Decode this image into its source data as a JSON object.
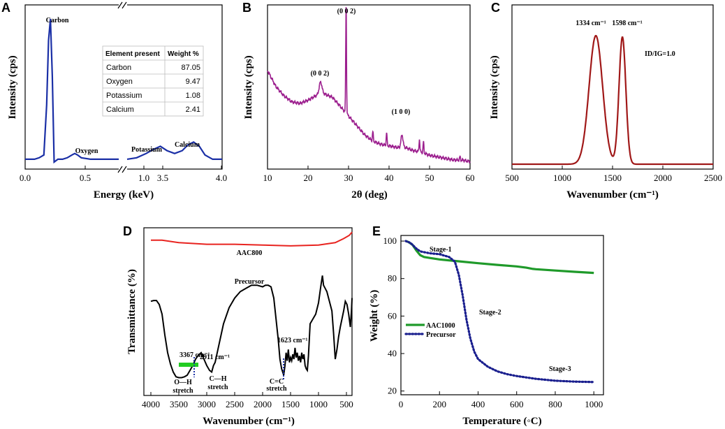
{
  "panels": {
    "A": {
      "letter": "A"
    },
    "B": {
      "letter": "B"
    },
    "C": {
      "letter": "C"
    },
    "D": {
      "letter": "D"
    },
    "E": {
      "letter": "E"
    }
  },
  "colors": {
    "A": "#1a2fa6",
    "B": "#9c1f8e",
    "C": "#a01818",
    "D_aac": "#e8231f",
    "D_prec": "#000000",
    "D_marker_green": "#22cc22",
    "D_dotted": "#1a2fa6",
    "E_aac": "#1f9a2a",
    "E_prec": "#1a1f8e"
  },
  "chart_data": [
    {
      "id": "A",
      "type": "line",
      "title": "",
      "xlabel": "Energy (keV)",
      "ylabel": "Intensity (cps)",
      "broken_axis": true,
      "xticks": [
        "0.0",
        "0.5",
        "1.0",
        "3.5",
        "4.0"
      ],
      "segments": [
        {
          "xlim": [
            0.0,
            1.0
          ],
          "x": [
            0.0,
            0.1,
            0.15,
            0.2,
            0.23,
            0.25,
            0.27,
            0.29,
            0.31,
            0.35,
            0.4,
            0.45,
            0.5,
            0.53,
            0.56,
            0.6,
            0.7,
            0.8,
            0.9,
            1.0
          ],
          "y": [
            0.02,
            0.02,
            0.03,
            0.05,
            0.4,
            0.85,
            1.0,
            0.6,
            0.0,
            0.02,
            0.02,
            0.03,
            0.05,
            0.06,
            0.05,
            0.03,
            0.02,
            0.02,
            0.02,
            0.02
          ]
        },
        {
          "xlim": [
            3.0,
            4.0
          ],
          "x": [
            3.0,
            3.1,
            3.2,
            3.28,
            3.35,
            3.42,
            3.5,
            3.58,
            3.64,
            3.7,
            3.76,
            3.82,
            3.9,
            4.0
          ],
          "y": [
            0.02,
            0.03,
            0.06,
            0.09,
            0.11,
            0.08,
            0.06,
            0.08,
            0.12,
            0.14,
            0.11,
            0.05,
            0.02,
            0.02
          ]
        }
      ],
      "annotations": [
        "Carbon",
        "Oxygen",
        "Potassium",
        "Calcium"
      ],
      "table": {
        "headers": [
          "Element present",
          "Weight %"
        ],
        "rows": [
          [
            "Carbon",
            "87.05"
          ],
          [
            "Oxygen",
            "9.47"
          ],
          [
            "Potassium",
            "1.08"
          ],
          [
            "Calcium",
            "2.41"
          ]
        ]
      }
    },
    {
      "id": "B",
      "type": "line",
      "xlabel": "2θ (deg)",
      "ylabel": "Intensity (cps)",
      "xlim": [
        10,
        60
      ],
      "xticks": [
        10,
        20,
        30,
        40,
        50,
        60
      ],
      "peak_labels": [
        {
          "text": "(0 0 2)",
          "x": 23
        },
        {
          "text": "(0 0 2)",
          "x": 29.4
        },
        {
          "text": "(1 0 0)",
          "x": 43
        }
      ],
      "baseline": {
        "x": [
          10,
          12,
          14,
          16,
          18,
          20,
          22,
          24,
          26,
          28,
          30,
          32,
          34,
          36,
          38,
          40,
          42,
          44,
          46,
          48,
          50,
          52,
          54,
          56,
          58,
          60
        ],
        "y": [
          0.61,
          0.51,
          0.45,
          0.41,
          0.4,
          0.42,
          0.45,
          0.46,
          0.44,
          0.38,
          0.32,
          0.26,
          0.2,
          0.16,
          0.14,
          0.13,
          0.12,
          0.12,
          0.1,
          0.09,
          0.07,
          0.06,
          0.05,
          0.04,
          0.04,
          0.03
        ]
      },
      "peaks": [
        {
          "x": 23.1,
          "h": 0.08,
          "w": 0.5
        },
        {
          "x": 29.4,
          "h": 0.68,
          "w": 0.14
        },
        {
          "x": 36.0,
          "h": 0.06,
          "w": 0.15
        },
        {
          "x": 39.4,
          "h": 0.08,
          "w": 0.15
        },
        {
          "x": 43.2,
          "h": 0.08,
          "w": 0.35
        },
        {
          "x": 47.5,
          "h": 0.08,
          "w": 0.15
        },
        {
          "x": 48.5,
          "h": 0.07,
          "w": 0.15
        },
        {
          "x": 57.5,
          "h": 0.02,
          "w": 0.15
        }
      ]
    },
    {
      "id": "C",
      "type": "line",
      "xlabel": "Wavenumber (cm⁻¹)",
      "ylabel": "Intensity (cps)",
      "xlim": [
        500,
        2500
      ],
      "xticks": [
        500,
        1000,
        1500,
        2000,
        2500
      ],
      "peaks": [
        {
          "x": 1334,
          "h": 0.92,
          "w": 95
        },
        {
          "x": 1598,
          "h": 0.91,
          "w": 48
        }
      ],
      "peak_labels": [
        "1334 cm⁻¹",
        "1598 cm⁻¹"
      ],
      "ratio_label": "ID/IG=1.0"
    },
    {
      "id": "D",
      "type": "line",
      "xlabel": "Wavenumber (cm⁻¹)",
      "ylabel": "Transmittance (%)",
      "xlim": [
        4000,
        400
      ],
      "xticks": [
        4000,
        3500,
        3000,
        2500,
        2000,
        1500,
        1000,
        500
      ],
      "series": [
        {
          "name": "AAC800",
          "x": [
            4000,
            3800,
            3500,
            3000,
            2500,
            2000,
            1500,
            1000,
            700,
            550,
            450,
            400
          ],
          "y": [
            0.94,
            0.94,
            0.925,
            0.915,
            0.915,
            0.91,
            0.905,
            0.91,
            0.925,
            0.95,
            0.97,
            0.99
          ]
        },
        {
          "name": "Precursor",
          "x": [
            4000,
            3950,
            3900,
            3850,
            3800,
            3750,
            3700,
            3650,
            3600,
            3550,
            3500,
            3450,
            3400,
            3350,
            3300,
            3250,
            3200,
            3150,
            3100,
            3050,
            3000,
            2950,
            2911,
            2880,
            2850,
            2800,
            2700,
            2600,
            2500,
            2400,
            2300,
            2200,
            2100,
            2000,
            1950,
            1900,
            1850,
            1800,
            1760,
            1720,
            1690,
            1660,
            1623,
            1600,
            1580,
            1560,
            1540,
            1520,
            1500,
            1480,
            1460,
            1440,
            1420,
            1400,
            1380,
            1360,
            1340,
            1320,
            1300,
            1280,
            1260,
            1240,
            1220,
            1200,
            1180,
            1150,
            1100,
            1050,
            1000,
            960,
            930,
            910,
            880,
            850,
            820,
            790,
            760,
            730,
            700,
            670,
            640,
            610,
            580,
            550,
            520,
            490,
            460,
            430,
            410,
            400
          ],
          "y": [
            0.56,
            0.565,
            0.565,
            0.54,
            0.48,
            0.35,
            0.24,
            0.17,
            0.12,
            0.09,
            0.085,
            0.085,
            0.09,
            0.1,
            0.13,
            0.16,
            0.2,
            0.225,
            0.24,
            0.2,
            0.16,
            0.13,
            0.12,
            0.16,
            0.18,
            0.26,
            0.42,
            0.52,
            0.58,
            0.62,
            0.64,
            0.66,
            0.66,
            0.65,
            0.66,
            0.66,
            0.65,
            0.58,
            0.45,
            0.32,
            0.2,
            0.14,
            0.1,
            0.16,
            0.24,
            0.19,
            0.26,
            0.18,
            0.21,
            0.19,
            0.23,
            0.2,
            0.27,
            0.21,
            0.24,
            0.19,
            0.22,
            0.18,
            0.24,
            0.2,
            0.23,
            0.16,
            0.14,
            0.13,
            0.22,
            0.42,
            0.45,
            0.48,
            0.55,
            0.65,
            0.72,
            0.66,
            0.64,
            0.62,
            0.58,
            0.54,
            0.5,
            0.36,
            0.2,
            0.26,
            0.34,
            0.4,
            0.45,
            0.5,
            0.56,
            0.54,
            0.48,
            0.4,
            0.5,
            0.58
          ]
        }
      ],
      "annotations": [
        "3367 cm⁻¹",
        "2911 cm⁻¹",
        "1623 cm⁻¹",
        "O—H stretch",
        "C—H stretch",
        "C=C stretch"
      ]
    },
    {
      "id": "E",
      "type": "line",
      "xlabel": "Temperature (◦C)",
      "ylabel": "Weight (%)",
      "xlim": [
        0,
        1050
      ],
      "ylim": [
        18,
        103
      ],
      "xticks": [
        0,
        200,
        400,
        600,
        800,
        1000
      ],
      "yticks": [
        20,
        40,
        60,
        80,
        100
      ],
      "series": [
        {
          "name": "AAC1000",
          "x": [
            25,
            40,
            60,
            80,
            100,
            120,
            150,
            200,
            300,
            400,
            500,
            600,
            650,
            680,
            700,
            800,
            900,
            1000
          ],
          "y": [
            100,
            99.5,
            98,
            95,
            92.5,
            91.5,
            91,
            90.2,
            89.2,
            88.2,
            87.3,
            86.5,
            85.8,
            85.2,
            85.0,
            84.3,
            83.6,
            83.0
          ]
        },
        {
          "name": "Precursor",
          "x": [
            25,
            50,
            80,
            100,
            150,
            200,
            250,
            280,
            300,
            320,
            340,
            360,
            380,
            400,
            450,
            500,
            550,
            600,
            700,
            800,
            900,
            1000
          ],
          "y": [
            100,
            99,
            96,
            94.5,
            93.5,
            93,
            91.5,
            89,
            82,
            71,
            58,
            48,
            41,
            37,
            33,
            30.5,
            29,
            28,
            26.5,
            25.5,
            25.0,
            24.8
          ]
        }
      ],
      "annotations": [
        "Stage-1",
        "Stage-2",
        "Stage-3"
      ]
    }
  ]
}
